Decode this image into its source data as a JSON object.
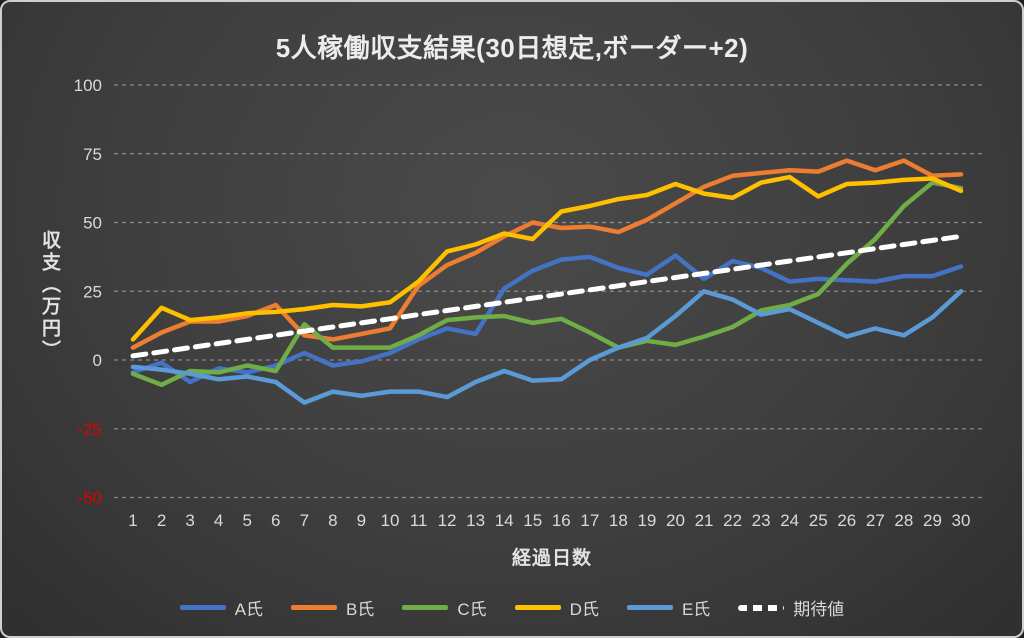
{
  "title": "5人稼働収支結果(30日想定,ボーダー+2)",
  "colors": {
    "background": "#3f3f3f",
    "card_border": "#cfcfcf",
    "grid": "#a0a0a0",
    "tick": "#d9d9d9",
    "negative_tick": "#e00000",
    "title_text": "#ececec"
  },
  "chart_data": {
    "type": "line",
    "title": "5人稼働収支結果(30日想定,ボーダー+2)",
    "xlabel": "経過日数",
    "ylabel": "収支（万円）",
    "ylim": [
      -50,
      100
    ],
    "y_ticks": [
      100,
      75,
      50,
      25,
      0,
      -25,
      -50
    ],
    "grid": "horizontal-dashed",
    "legend_position": "bottom",
    "x": [
      1,
      2,
      3,
      4,
      5,
      6,
      7,
      8,
      9,
      10,
      11,
      12,
      13,
      14,
      15,
      16,
      17,
      18,
      19,
      20,
      21,
      22,
      23,
      24,
      25,
      26,
      27,
      28,
      29,
      30
    ],
    "series": [
      {
        "name": "A氏",
        "color": "#4472C4",
        "dash": false,
        "values": [
          -4.5,
          -1,
          -8,
          -3,
          -4.5,
          -2,
          2.5,
          -2,
          -0.5,
          2.5,
          7.5,
          11.5,
          9.5,
          26,
          32.5,
          36.5,
          37.5,
          33.5,
          31,
          38,
          29.5,
          36,
          33.5,
          28.5,
          29.5,
          29,
          28.5,
          30.5,
          30.5,
          34
        ]
      },
      {
        "name": "B氏",
        "color": "#ED7D31",
        "dash": false,
        "values": [
          4.5,
          10,
          14,
          14,
          16,
          20,
          9,
          7.5,
          9.5,
          11.5,
          27,
          34.5,
          39,
          45,
          50,
          48,
          48.5,
          46.5,
          51,
          57,
          63,
          67,
          68,
          69,
          68.5,
          72.5,
          69,
          72.5,
          67,
          67.5
        ]
      },
      {
        "name": "C氏",
        "color": "#70AD47",
        "dash": false,
        "values": [
          -5,
          -9,
          -4,
          -4.5,
          -2,
          -4,
          13,
          4.5,
          4.5,
          4.5,
          9,
          14.5,
          15.5,
          16,
          13.5,
          15,
          10,
          4.5,
          7,
          5.5,
          8.5,
          12,
          18,
          20,
          24,
          35,
          44,
          56,
          64.5,
          62.5
        ]
      },
      {
        "name": "D氏",
        "color": "#FFC000",
        "dash": false,
        "values": [
          7.5,
          19,
          14.5,
          15.5,
          17,
          17.5,
          18.5,
          20,
          19.5,
          21,
          28.5,
          39.5,
          42,
          46,
          44,
          54,
          56,
          58.5,
          60,
          64,
          60.5,
          59,
          64.5,
          66.5,
          59.5,
          64,
          64.5,
          65.5,
          66,
          61.5
        ]
      },
      {
        "name": "E氏",
        "color": "#5B9BD5",
        "dash": false,
        "values": [
          -2.5,
          -3.5,
          -5,
          -7,
          -6,
          -8,
          -15.5,
          -11.5,
          -13,
          -11.5,
          -11.5,
          -13.5,
          -8,
          -4,
          -7.5,
          -7,
          0,
          4.5,
          8,
          16,
          25,
          22,
          16.5,
          18.5,
          13.5,
          8.5,
          11.5,
          9,
          15.5,
          25
        ]
      },
      {
        "name": "期待値",
        "color": "#FFFFFF",
        "dash": true,
        "values": [
          1.5,
          3,
          4.5,
          6,
          7.5,
          9,
          10.5,
          12,
          13.5,
          15,
          16.5,
          18,
          19.5,
          21,
          22.5,
          24,
          25.5,
          27,
          28.5,
          30,
          31.5,
          33,
          34.5,
          36,
          37.5,
          39,
          40.5,
          42,
          43.5,
          45
        ]
      }
    ]
  }
}
